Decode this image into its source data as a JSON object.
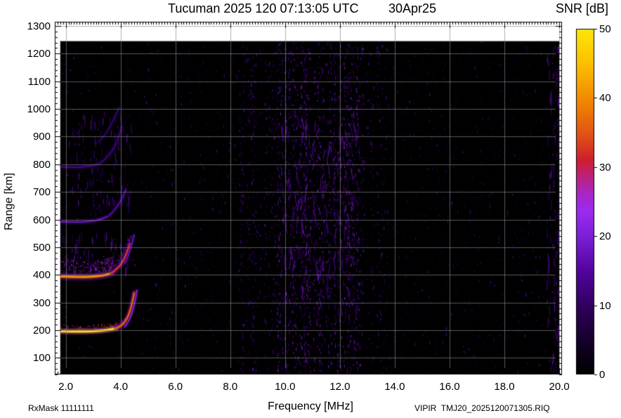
{
  "header": {
    "title": "Tucuman 2025 120 07:13:05 UTC",
    "date": "30Apr25",
    "colorbar_title": "SNR [dB]"
  },
  "footer": {
    "rx_mask": "RxMask 11111111",
    "xlabel": "Frequency [MHz]",
    "file_id": "VIPIR  TMJ20_2025120071305.RIQ"
  },
  "axes": {
    "ylabel": "Range [km]",
    "x_ticks": [
      {
        "v": 2,
        "label": "2.0"
      },
      {
        "v": 4,
        "label": "4.0"
      },
      {
        "v": 6,
        "label": "6.0"
      },
      {
        "v": 8,
        "label": "8.0"
      },
      {
        "v": 10,
        "label": "10.0"
      },
      {
        "v": 12,
        "label": "12.0"
      },
      {
        "v": 14,
        "label": "14.0"
      },
      {
        "v": 16,
        "label": "16.0"
      },
      {
        "v": 18,
        "label": "18.0"
      },
      {
        "v": 20,
        "label": "20.0"
      }
    ],
    "y_ticks": [
      {
        "v": 100,
        "label": "100"
      },
      {
        "v": 200,
        "label": "200"
      },
      {
        "v": 300,
        "label": "300"
      },
      {
        "v": 400,
        "label": "400"
      },
      {
        "v": 500,
        "label": "500"
      },
      {
        "v": 600,
        "label": "600"
      },
      {
        "v": 700,
        "label": "700"
      },
      {
        "v": 800,
        "label": "800"
      },
      {
        "v": 900,
        "label": "900"
      },
      {
        "v": 1000,
        "label": "1000"
      },
      {
        "v": 1100,
        "label": "1100"
      },
      {
        "v": 1200,
        "label": "1200"
      },
      {
        "v": 1300,
        "label": "1300"
      }
    ],
    "colorbar_ticks": [
      {
        "v": 0,
        "label": "0"
      },
      {
        "v": 10,
        "label": "10"
      },
      {
        "v": 20,
        "label": "20"
      },
      {
        "v": 30,
        "label": "30"
      },
      {
        "v": 40,
        "label": "40"
      },
      {
        "v": 50,
        "label": "50"
      }
    ]
  },
  "chart_data": {
    "type": "heatmap",
    "subtype": "ionogram-snr-spectrogram",
    "title": "Tucuman 2025 120 07:13:05 UTC",
    "date": "30Apr25",
    "xlabel": "Frequency [MHz]",
    "ylabel": "Range [km]",
    "xlim": [
      1.6,
      20.1
    ],
    "ylim": [
      40,
      1315
    ],
    "data_extent": {
      "f": [
        1.8,
        20.0
      ],
      "r": [
        40,
        1245
      ]
    },
    "grid": true,
    "x_minor_step": 0.1,
    "y_minor_step": 20,
    "colorbar": {
      "label": "SNR [dB]",
      "min": 0,
      "max": 50,
      "ticks": [
        0,
        10,
        20,
        30,
        40,
        50
      ],
      "stops": [
        [
          0.0,
          "#000000"
        ],
        [
          0.1,
          "#16002c"
        ],
        [
          0.2,
          "#31005e"
        ],
        [
          0.3,
          "#5304a0"
        ],
        [
          0.4,
          "#7d1fd6"
        ],
        [
          0.47,
          "#9b2bf0"
        ],
        [
          0.52,
          "#a727c8"
        ],
        [
          0.57,
          "#bb2280"
        ],
        [
          0.62,
          "#cf1e30"
        ],
        [
          0.7,
          "#e25612"
        ],
        [
          0.8,
          "#f28c00"
        ],
        [
          0.9,
          "#fcc000"
        ],
        [
          1.0,
          "#ffe60a"
        ]
      ]
    },
    "traces": [
      {
        "name": "echo-1-flat",
        "points": [
          [
            1.8,
            196
          ],
          [
            2.4,
            195
          ],
          [
            3.0,
            196
          ],
          [
            3.5,
            200
          ],
          [
            3.85,
            207
          ]
        ],
        "snr": 46,
        "width": 3,
        "glow": 6,
        "spread": 25,
        "spread_density": 0.2
      },
      {
        "name": "echo-1-rise",
        "points": [
          [
            3.85,
            207
          ],
          [
            4.05,
            218
          ],
          [
            4.2,
            235
          ],
          [
            4.32,
            260
          ],
          [
            4.42,
            295
          ],
          [
            4.5,
            335
          ]
        ],
        "snr": 34,
        "width": 2.5,
        "glow": 6,
        "spread": 20,
        "spread_density": 0.15
      },
      {
        "name": "echo-1-x",
        "points": [
          [
            4.15,
            212
          ],
          [
            4.3,
            232
          ],
          [
            4.42,
            262
          ],
          [
            4.52,
            300
          ],
          [
            4.6,
            345
          ]
        ],
        "snr": 20,
        "width": 1.5,
        "glow": 3,
        "spread": 0,
        "spread_density": 0
      },
      {
        "name": "echo-2-flat",
        "points": [
          [
            1.8,
            394
          ],
          [
            2.4,
            392
          ],
          [
            3.0,
            393
          ],
          [
            3.45,
            399
          ],
          [
            3.7,
            408
          ]
        ],
        "snr": 37,
        "width": 3,
        "glow": 8,
        "spread": 60,
        "spread_density": 0.5
      },
      {
        "name": "echo-2-rise",
        "points": [
          [
            3.7,
            408
          ],
          [
            3.95,
            428
          ],
          [
            4.12,
            455
          ],
          [
            4.25,
            485
          ],
          [
            4.34,
            512
          ]
        ],
        "snr": 30,
        "width": 2.5,
        "glow": 7,
        "spread": 40,
        "spread_density": 0.3
      },
      {
        "name": "echo-2-x",
        "points": [
          [
            4.15,
            440
          ],
          [
            4.3,
            475
          ],
          [
            4.42,
            515
          ],
          [
            4.5,
            545
          ]
        ],
        "snr": 16,
        "width": 1.5,
        "glow": 3,
        "spread": 0,
        "spread_density": 0
      },
      {
        "name": "echo-3-flat",
        "points": [
          [
            1.8,
            592
          ],
          [
            2.4,
            590
          ],
          [
            2.9,
            593
          ],
          [
            3.3,
            601
          ],
          [
            3.6,
            615
          ]
        ],
        "snr": 16,
        "width": 2,
        "glow": 6,
        "spread": 60,
        "spread_density": 0.4
      },
      {
        "name": "echo-3-rise",
        "points": [
          [
            3.6,
            615
          ],
          [
            3.85,
            642
          ],
          [
            4.05,
            675
          ],
          [
            4.2,
            710
          ]
        ],
        "snr": 13,
        "width": 2,
        "glow": 5,
        "spread": 50,
        "spread_density": 0.3
      },
      {
        "name": "echo-4-flat",
        "points": [
          [
            1.8,
            790
          ],
          [
            2.4,
            788
          ],
          [
            2.9,
            793
          ],
          [
            3.25,
            803
          ]
        ],
        "snr": 11,
        "width": 2,
        "glow": 5,
        "spread": 60,
        "spread_density": 0.3
      },
      {
        "name": "echo-4-rise",
        "points": [
          [
            3.25,
            803
          ],
          [
            3.55,
            828
          ],
          [
            3.8,
            865
          ],
          [
            3.95,
            905
          ],
          [
            4.05,
            935
          ]
        ],
        "snr": 10,
        "width": 1.8,
        "glow": 4,
        "spread": 50,
        "spread_density": 0.25
      },
      {
        "name": "echo-5-faint",
        "points": [
          [
            3.25,
            885
          ],
          [
            3.5,
            915
          ],
          [
            3.7,
            950
          ],
          [
            3.85,
            985
          ],
          [
            3.95,
            1005
          ]
        ],
        "snr": 9,
        "width": 1.5,
        "glow": 3,
        "spread": 30,
        "spread_density": 0.15
      }
    ],
    "spread_clusters": [
      {
        "f0": 2.1,
        "f1": 4.4,
        "r0": 620,
        "r1": 1000,
        "density": 0.5,
        "snr": 13,
        "mode": "streak"
      },
      {
        "f0": 1.9,
        "f1": 4.4,
        "r0": 410,
        "r1": 560,
        "density": 0.6,
        "snr": 15,
        "mode": "streak"
      },
      {
        "f0": 1.8,
        "f1": 5.0,
        "r0": 55,
        "r1": 185,
        "density": 0.25,
        "snr": 9,
        "mode": "dot"
      },
      {
        "f0": 1.9,
        "f1": 3.2,
        "r0": 1050,
        "r1": 1230,
        "density": 0.3,
        "snr": 11,
        "mode": "dot"
      },
      {
        "f0": 19.55,
        "f1": 20.0,
        "r0": 50,
        "r1": 1240,
        "density": 0.8,
        "snr": 13,
        "mode": "streak"
      },
      {
        "f0": 9.8,
        "f1": 12.7,
        "r0": 260,
        "r1": 980,
        "density": 0.35,
        "snr": 15,
        "mode": "diag"
      }
    ],
    "interference_bands": [
      {
        "f0": 4.9,
        "f1": 8.25,
        "density": 0.12,
        "snr": 10
      },
      {
        "f0": 8.25,
        "f1": 9.7,
        "density": 0.5,
        "snr": 12
      },
      {
        "f0": 9.7,
        "f1": 12.7,
        "density": 1.0,
        "snr": 15
      },
      {
        "f0": 12.7,
        "f1": 13.7,
        "density": 0.45,
        "snr": 12
      },
      {
        "f0": 13.7,
        "f1": 19.5,
        "density": 0.1,
        "snr": 10
      }
    ],
    "background_speckle": {
      "density": 0.02,
      "bright_count": 350,
      "seed": 20250430
    }
  }
}
